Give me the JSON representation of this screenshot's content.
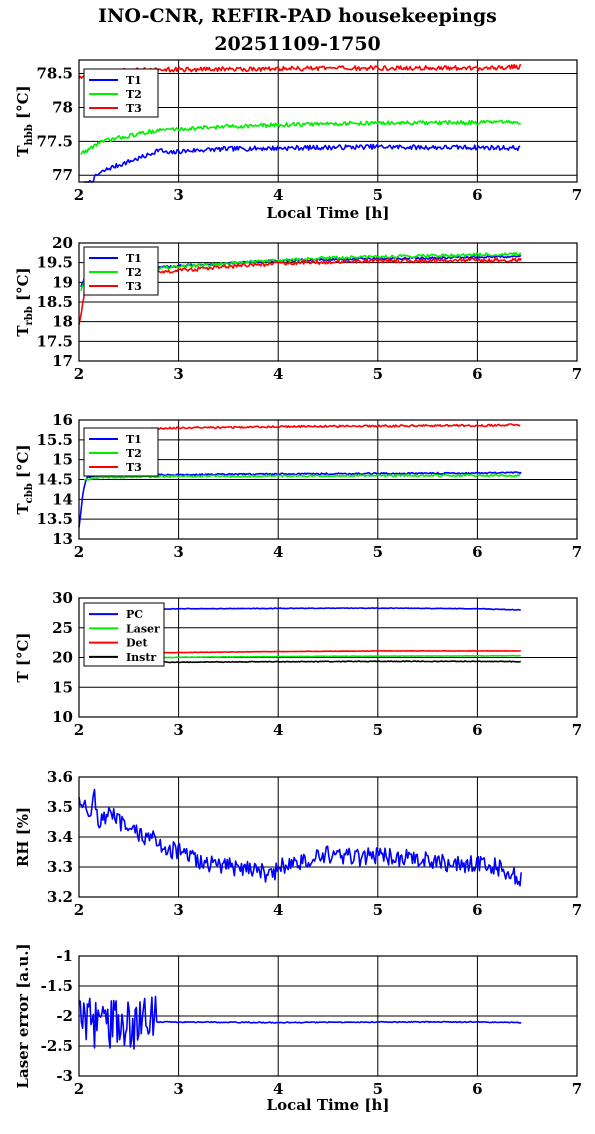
{
  "title_line1": "INO-CNR, REFIR-PAD housekeepings",
  "title_line2": "20251109-1750",
  "xlabel": "Local Time [h]",
  "chart_data": [
    {
      "type": "line",
      "ylabel_main": "T",
      "ylabel_sub": "hbb",
      "ylabel_unit": " [°C]",
      "xlabel": "Local Time [h]",
      "xlim": [
        2,
        7
      ],
      "ylim": [
        76.9,
        78.7
      ],
      "xticks": [
        2,
        3,
        4,
        5,
        6,
        7
      ],
      "yticks": [
        77,
        77.5,
        78,
        78.5
      ],
      "ytick_labels": [
        "77",
        "77.5",
        "78",
        "78.5"
      ],
      "grid": true,
      "legend_position": "top-left",
      "legend_keys": [
        "T1",
        "T2",
        "T3"
      ],
      "series": [
        {
          "name": "T1",
          "color": "#0000ff",
          "points": [
            [
              2.05,
              76.85
            ],
            [
              2.1,
              76.88
            ],
            [
              2.2,
              77.02
            ],
            [
              2.3,
              77.1
            ],
            [
              2.4,
              77.15
            ],
            [
              2.5,
              77.2
            ],
            [
              2.6,
              77.25
            ],
            [
              2.7,
              77.3
            ],
            [
              2.8,
              77.38
            ],
            [
              2.9,
              77.32
            ],
            [
              3.0,
              77.35
            ],
            [
              3.2,
              77.37
            ],
            [
              3.5,
              77.39
            ],
            [
              4.0,
              77.4
            ],
            [
              4.5,
              77.41
            ],
            [
              5.0,
              77.42
            ],
            [
              5.5,
              77.41
            ],
            [
              6.0,
              77.41
            ],
            [
              6.44,
              77.4
            ]
          ],
          "noise": 0.035
        },
        {
          "name": "T2",
          "color": "#00ee00",
          "points": [
            [
              2.02,
              77.32
            ],
            [
              2.1,
              77.38
            ],
            [
              2.2,
              77.48
            ],
            [
              2.3,
              77.52
            ],
            [
              2.5,
              77.58
            ],
            [
              2.7,
              77.64
            ],
            [
              2.9,
              77.68
            ],
            [
              3.0,
              77.68
            ],
            [
              3.5,
              77.72
            ],
            [
              4.0,
              77.74
            ],
            [
              4.5,
              77.76
            ],
            [
              5.0,
              77.77
            ],
            [
              5.5,
              77.77
            ],
            [
              6.0,
              77.78
            ],
            [
              6.44,
              77.78
            ]
          ],
          "noise": 0.03
        },
        {
          "name": "T3",
          "color": "#ff0000",
          "points": [
            [
              2.0,
              78.45
            ],
            [
              2.1,
              78.5
            ],
            [
              2.3,
              78.53
            ],
            [
              2.6,
              78.55
            ],
            [
              3.0,
              78.56
            ],
            [
              4.0,
              78.57
            ],
            [
              5.0,
              78.58
            ],
            [
              6.0,
              78.58
            ],
            [
              6.44,
              78.6
            ]
          ],
          "noise": 0.035
        }
      ]
    },
    {
      "type": "line",
      "ylabel_main": "T",
      "ylabel_sub": "rbb",
      "ylabel_unit": " [°C]",
      "xlim": [
        2,
        7
      ],
      "ylim": [
        17,
        20
      ],
      "xticks": [
        2,
        3,
        4,
        5,
        6,
        7
      ],
      "yticks": [
        17,
        17.5,
        18,
        18.5,
        19,
        19.5,
        20
      ],
      "ytick_labels": [
        "17",
        "17.5",
        "18",
        "18.5",
        "19",
        "19.5",
        "20"
      ],
      "grid": true,
      "legend_position": "top-left",
      "legend_keys": [
        "T1",
        "T2",
        "T3"
      ],
      "series": [
        {
          "name": "T1",
          "color": "#0000ff",
          "points": [
            [
              2.02,
              18.9
            ],
            [
              2.06,
              19.15
            ],
            [
              2.2,
              19.2
            ],
            [
              2.5,
              19.3
            ],
            [
              3.0,
              19.42
            ],
            [
              3.5,
              19.48
            ],
            [
              4.0,
              19.55
            ],
            [
              4.5,
              19.58
            ],
            [
              5.0,
              19.6
            ],
            [
              5.5,
              19.62
            ],
            [
              6.0,
              19.64
            ],
            [
              6.44,
              19.66
            ]
          ],
          "noise": 0.03
        },
        {
          "name": "T2",
          "color": "#00ee00",
          "points": [
            [
              2.02,
              18.8
            ],
            [
              2.06,
              19.1
            ],
            [
              2.2,
              19.18
            ],
            [
              2.5,
              19.28
            ],
            [
              3.0,
              19.4
            ],
            [
              3.5,
              19.48
            ],
            [
              4.0,
              19.56
            ],
            [
              4.5,
              19.62
            ],
            [
              5.0,
              19.65
            ],
            [
              5.5,
              19.68
            ],
            [
              6.0,
              19.7
            ],
            [
              6.44,
              19.72
            ]
          ],
          "noise": 0.04
        },
        {
          "name": "T3",
          "color": "#ff0000",
          "points": [
            [
              2.0,
              17.95
            ],
            [
              2.03,
              18.3
            ],
            [
              2.06,
              18.9
            ],
            [
              2.2,
              19.05
            ],
            [
              2.5,
              19.15
            ],
            [
              3.0,
              19.3
            ],
            [
              3.5,
              19.4
            ],
            [
              4.0,
              19.48
            ],
            [
              4.5,
              19.52
            ],
            [
              5.0,
              19.55
            ],
            [
              5.5,
              19.55
            ],
            [
              6.0,
              19.56
            ],
            [
              6.44,
              19.57
            ]
          ],
          "noise": 0.05
        }
      ]
    },
    {
      "type": "line",
      "ylabel_main": "T",
      "ylabel_sub": "cbb",
      "ylabel_unit": " [°C]",
      "xlim": [
        2,
        7
      ],
      "ylim": [
        13,
        16
      ],
      "xticks": [
        2,
        3,
        4,
        5,
        6,
        7
      ],
      "yticks": [
        13,
        13.5,
        14,
        14.5,
        15,
        15.5,
        16
      ],
      "ytick_labels": [
        "13",
        "13.5",
        "14",
        "14.5",
        "15",
        "15.5",
        "16"
      ],
      "grid": true,
      "legend_position": "top-left",
      "legend_keys": [
        "T1",
        "T2",
        "T3"
      ],
      "series": [
        {
          "name": "T1",
          "color": "#0000ff",
          "points": [
            [
              2.0,
              13.3
            ],
            [
              2.02,
              13.7
            ],
            [
              2.04,
              14.2
            ],
            [
              2.08,
              14.55
            ],
            [
              2.2,
              14.6
            ],
            [
              3.0,
              14.62
            ],
            [
              4.0,
              14.64
            ],
            [
              5.0,
              14.65
            ],
            [
              6.0,
              14.66
            ],
            [
              6.44,
              14.67
            ]
          ],
          "noise": 0.02
        },
        {
          "name": "T2",
          "color": "#00ee00",
          "points": [
            [
              2.05,
              14.5
            ],
            [
              2.2,
              14.55
            ],
            [
              3.0,
              14.58
            ],
            [
              4.0,
              14.59
            ],
            [
              5.0,
              14.6
            ],
            [
              6.0,
              14.6
            ],
            [
              6.44,
              14.6
            ]
          ],
          "noise": 0.025
        },
        {
          "name": "T3",
          "color": "#ff0000",
          "points": [
            [
              2.05,
              15.7
            ],
            [
              2.3,
              15.75
            ],
            [
              3.0,
              15.8
            ],
            [
              4.0,
              15.83
            ],
            [
              5.0,
              15.85
            ],
            [
              6.0,
              15.86
            ],
            [
              6.44,
              15.88
            ]
          ],
          "noise": 0.025
        }
      ]
    },
    {
      "type": "line",
      "ylabel_main": "T [°C]",
      "ylabel_sub": "",
      "ylabel_unit": "",
      "xlim": [
        2,
        7
      ],
      "ylim": [
        10,
        30
      ],
      "xticks": [
        2,
        3,
        4,
        5,
        6,
        7
      ],
      "yticks": [
        10,
        15,
        20,
        25,
        30
      ],
      "ytick_labels": [
        "10",
        "15",
        "20",
        "25",
        "30"
      ],
      "grid": true,
      "legend_position": "top-left",
      "legend_keys": [
        "PC",
        "Laser",
        "Det",
        "Instr"
      ],
      "series": [
        {
          "name": "PC",
          "color": "#0000ff",
          "points": [
            [
              2.8,
              28.1
            ],
            [
              3.0,
              28.2
            ],
            [
              4.0,
              28.25
            ],
            [
              5.0,
              28.3
            ],
            [
              6.0,
              28.2
            ],
            [
              6.44,
              28.0
            ]
          ],
          "noise": 0.05
        },
        {
          "name": "Laser",
          "color": "#00ee00",
          "points": [
            [
              2.8,
              20.0
            ],
            [
              3.5,
              20.1
            ],
            [
              4.5,
              20.2
            ],
            [
              5.5,
              20.25
            ],
            [
              6.44,
              20.3
            ]
          ],
          "noise": 0.03
        },
        {
          "name": "Det",
          "color": "#ff0000",
          "points": [
            [
              2.8,
              20.8
            ],
            [
              4.0,
              21.0
            ],
            [
              5.0,
              21.1
            ],
            [
              6.0,
              21.1
            ],
            [
              6.44,
              21.1
            ]
          ],
          "noise": 0.03
        },
        {
          "name": "Instr",
          "color": "#000000",
          "points": [
            [
              2.8,
              19.2
            ],
            [
              4.0,
              19.3
            ],
            [
              5.0,
              19.35
            ],
            [
              6.0,
              19.35
            ],
            [
              6.44,
              19.3
            ]
          ],
          "noise": 0.06
        }
      ]
    },
    {
      "type": "line",
      "ylabel_main": "RH [%]",
      "ylabel_sub": "",
      "ylabel_unit": "",
      "xlim": [
        2,
        7
      ],
      "ylim": [
        3.2,
        3.6
      ],
      "xticks": [
        2,
        3,
        4,
        5,
        6,
        7
      ],
      "yticks": [
        3.2,
        3.3,
        3.4,
        3.5,
        3.6
      ],
      "ytick_labels": [
        "3.2",
        "3.3",
        "3.4",
        "3.5",
        "3.6"
      ],
      "grid": true,
      "legend_position": "",
      "legend_keys": [],
      "series": [
        {
          "name": "",
          "color": "#0000ff",
          "points": [
            [
              2.0,
              3.54
            ],
            [
              2.05,
              3.5
            ],
            [
              2.1,
              3.47
            ],
            [
              2.15,
              3.55
            ],
            [
              2.2,
              3.44
            ],
            [
              2.3,
              3.48
            ],
            [
              2.4,
              3.45
            ],
            [
              2.5,
              3.42
            ],
            [
              2.7,
              3.4
            ],
            [
              2.9,
              3.36
            ],
            [
              3.0,
              3.35
            ],
            [
              3.2,
              3.32
            ],
            [
              3.5,
              3.3
            ],
            [
              3.8,
              3.3
            ],
            [
              3.9,
              3.26
            ],
            [
              4.0,
              3.3
            ],
            [
              4.3,
              3.32
            ],
            [
              4.5,
              3.34
            ],
            [
              4.8,
              3.33
            ],
            [
              5.0,
              3.34
            ],
            [
              5.5,
              3.32
            ],
            [
              5.8,
              3.31
            ],
            [
              6.0,
              3.31
            ],
            [
              6.2,
              3.3
            ],
            [
              6.44,
              3.26
            ]
          ],
          "noise": 0.03
        }
      ]
    },
    {
      "type": "line",
      "ylabel_main": "Laser error [a.u.]",
      "ylabel_sub": "",
      "ylabel_unit": "",
      "xlabel": "Local Time [h]",
      "xlim": [
        2,
        7
      ],
      "ylim": [
        -3,
        -1
      ],
      "xticks": [
        2,
        3,
        4,
        5,
        6,
        7
      ],
      "yticks": [
        -3,
        -2.5,
        -2,
        -1.5,
        -1
      ],
      "ytick_labels": [
        "-3",
        "-2.5",
        "-2",
        "-1.5",
        "-1"
      ],
      "grid": true,
      "legend_position": "",
      "legend_keys": [],
      "series": [
        {
          "name": "",
          "color": "#0000ff",
          "points": [
            [
              2.0,
              -2.1
            ],
            [
              2.8,
              -2.1
            ],
            [
              3.0,
              -2.1
            ],
            [
              4.0,
              -2.11
            ],
            [
              5.0,
              -2.1
            ],
            [
              6.0,
              -2.1
            ],
            [
              6.44,
              -2.11
            ]
          ],
          "noise": 0.008,
          "burst": [
            2.0,
            2.78,
            0.45
          ]
        }
      ]
    }
  ]
}
